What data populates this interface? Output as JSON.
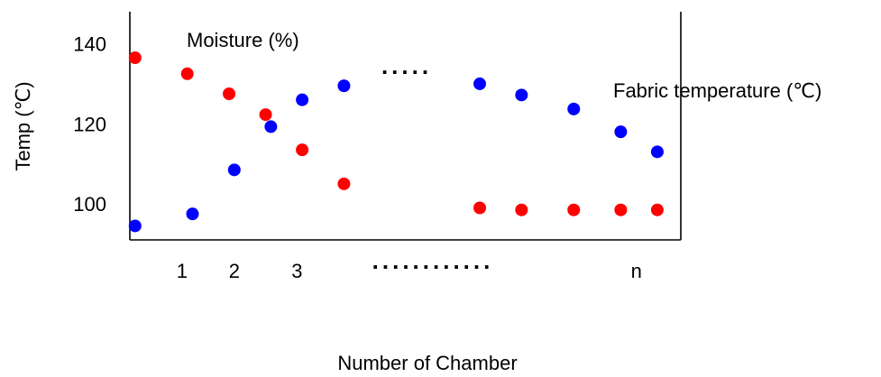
{
  "chart_data": {
    "type": "scatter",
    "title": "",
    "xlabel": "Number of Chamber",
    "ylabel": "Temp (℃)",
    "ylim": [
      91,
      148
    ],
    "yticks": [
      100,
      120,
      140
    ],
    "x_tick_labels": [
      "1",
      "2",
      "3",
      "n"
    ],
    "x_ellipsis": "............",
    "gap_ellipsis": ".....",
    "grid": false,
    "legend": "none",
    "series": [
      {
        "name": "Moisture (%)",
        "color": "#ff0000",
        "points": [
          {
            "x": 0.1,
            "y": 136.5
          },
          {
            "x": 1.1,
            "y": 132.5
          },
          {
            "x": 1.9,
            "y": 127.5
          },
          {
            "x": 2.6,
            "y": 122.3
          },
          {
            "x": 3.3,
            "y": 113.5
          },
          {
            "x": 4.1,
            "y": 105
          },
          {
            "x": 6.7,
            "y": 99
          },
          {
            "x": 7.5,
            "y": 98.5
          },
          {
            "x": 8.5,
            "y": 98.5
          },
          {
            "x": 9.4,
            "y": 98.5
          },
          {
            "x": 10.1,
            "y": 98.5
          }
        ]
      },
      {
        "name": "Fabric temperature (℃)",
        "color": "#0000ff",
        "points": [
          {
            "x": 0.1,
            "y": 94.5
          },
          {
            "x": 1.2,
            "y": 97.5
          },
          {
            "x": 2.0,
            "y": 108.5
          },
          {
            "x": 2.7,
            "y": 119.3
          },
          {
            "x": 3.3,
            "y": 126
          },
          {
            "x": 4.1,
            "y": 129.5
          },
          {
            "x": 6.7,
            "y": 130
          },
          {
            "x": 7.5,
            "y": 127.2
          },
          {
            "x": 8.5,
            "y": 123.7
          },
          {
            "x": 9.4,
            "y": 118
          },
          {
            "x": 10.1,
            "y": 113
          }
        ]
      }
    ]
  }
}
